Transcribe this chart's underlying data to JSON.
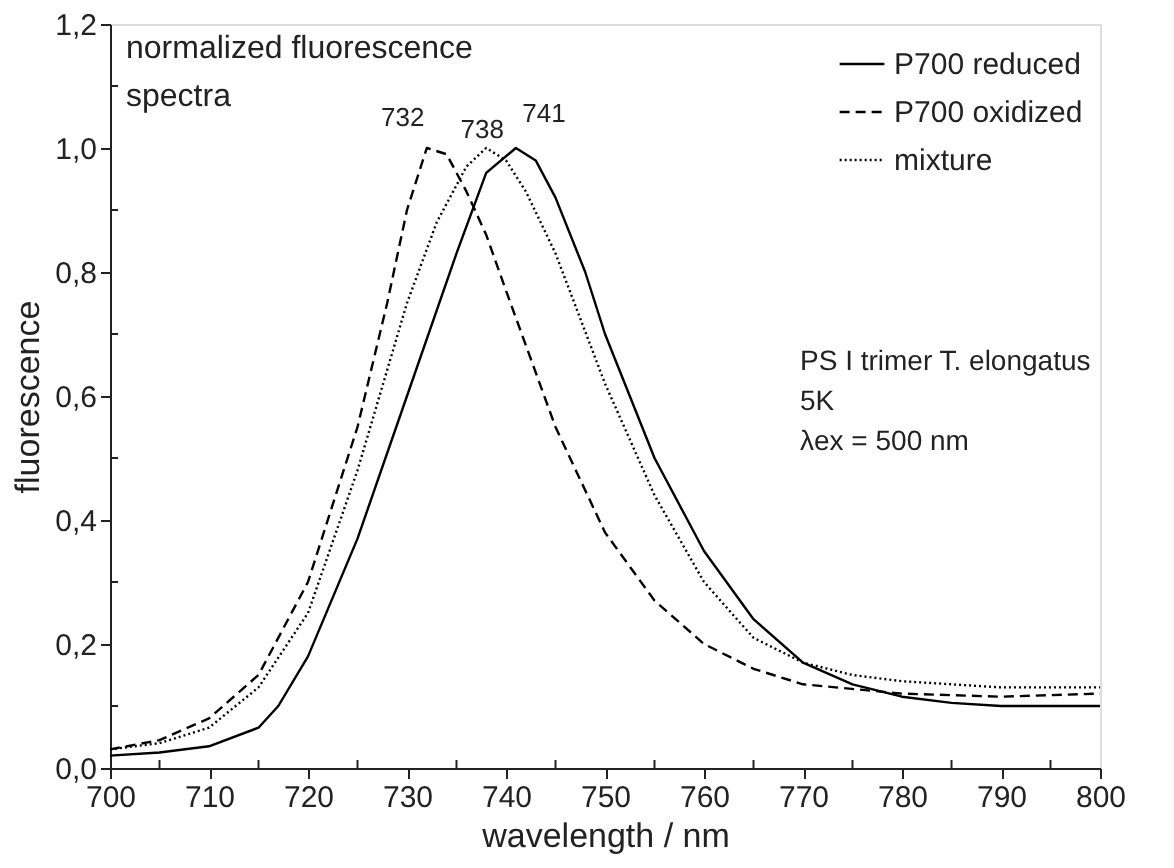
{
  "chart_data": {
    "type": "line",
    "xlabel": "wavelength / nm",
    "ylabel": "fluorescence",
    "xlim": [
      700,
      800
    ],
    "ylim": [
      0,
      1.2
    ],
    "xticks": [
      700,
      {
        "value": 705,
        "label": null
      },
      710,
      {
        "value": 715,
        "label": null
      },
      720,
      {
        "value": 725,
        "label": null
      },
      730,
      {
        "value": 735,
        "label": null
      },
      740,
      {
        "value": 745,
        "label": null
      },
      750,
      {
        "value": 755,
        "label": null
      },
      760,
      {
        "value": 765,
        "label": null
      },
      770,
      {
        "value": 775,
        "label": null
      },
      780,
      {
        "value": 785,
        "label": null
      },
      790,
      {
        "value": 795,
        "label": null
      },
      800
    ],
    "yticks": [
      {
        "value": 0,
        "label": "0,0"
      },
      {
        "value": 0.1,
        "label": null
      },
      {
        "value": 0.2,
        "label": "0,2"
      },
      {
        "value": 0.3,
        "label": null
      },
      {
        "value": 0.4,
        "label": "0,4"
      },
      {
        "value": 0.5,
        "label": null
      },
      {
        "value": 0.6,
        "label": "0,6"
      },
      {
        "value": 0.7,
        "label": null
      },
      {
        "value": 0.8,
        "label": "0,8"
      },
      {
        "value": 0.9,
        "label": null
      },
      {
        "value": 1.0,
        "label": "1,0"
      },
      {
        "value": 1.1,
        "label": null
      },
      {
        "value": 1.2,
        "label": "1,2"
      }
    ],
    "grid": false,
    "legend": "top right",
    "marker": "none",
    "series": [
      {
        "name": "P700 reduced",
        "color": "#000000",
        "line_style": "solid",
        "x": [
          700,
          705,
          710,
          715,
          717,
          720,
          725,
          730,
          735,
          738,
          741,
          743,
          745,
          748,
          750,
          755,
          760,
          765,
          770,
          775,
          780,
          785,
          790,
          800
        ],
        "values": [
          0.02,
          0.025,
          0.035,
          0.065,
          0.1,
          0.18,
          0.37,
          0.6,
          0.83,
          0.96,
          1.0,
          0.98,
          0.92,
          0.8,
          0.7,
          0.5,
          0.35,
          0.24,
          0.17,
          0.135,
          0.115,
          0.105,
          0.1,
          0.1
        ]
      },
      {
        "name": "P700 oxidized",
        "color": "#000000",
        "line_style": "dashed",
        "x": [
          700,
          705,
          710,
          715,
          720,
          725,
          728,
          730,
          732,
          734,
          736,
          738,
          740,
          745,
          750,
          755,
          760,
          765,
          770,
          780,
          790,
          800
        ],
        "values": [
          0.03,
          0.045,
          0.08,
          0.15,
          0.3,
          0.55,
          0.75,
          0.9,
          1.0,
          0.99,
          0.93,
          0.86,
          0.77,
          0.55,
          0.38,
          0.27,
          0.2,
          0.16,
          0.135,
          0.12,
          0.115,
          0.12
        ]
      },
      {
        "name": "mixture",
        "color": "#000000",
        "line_style": "dotted",
        "x": [
          700,
          705,
          710,
          715,
          720,
          725,
          730,
          733,
          736,
          738,
          740,
          742,
          745,
          750,
          755,
          760,
          765,
          770,
          775,
          780,
          790,
          800
        ],
        "values": [
          0.03,
          0.04,
          0.065,
          0.13,
          0.25,
          0.48,
          0.75,
          0.88,
          0.97,
          1.0,
          0.98,
          0.93,
          0.83,
          0.62,
          0.44,
          0.3,
          0.21,
          0.17,
          0.15,
          0.14,
          0.13,
          0.13
        ]
      }
    ],
    "annotations": [
      "normalized fluorescence\nspectra",
      "PS I trimer T. elongatus\n5K\nλex = 500 nm",
      {
        "text": "732",
        "x": 732,
        "y": 1.0
      },
      {
        "text": "738",
        "x": 738,
        "y": 1.0
      },
      {
        "text": "741",
        "x": 741,
        "y": 1.0
      }
    ]
  }
}
